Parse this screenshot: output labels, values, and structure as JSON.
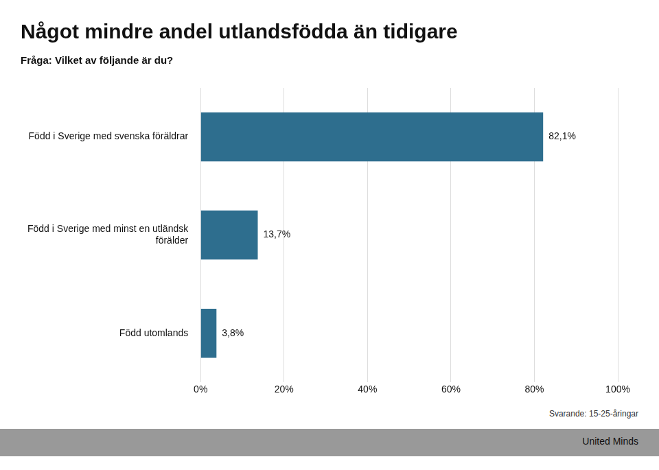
{
  "chart_data": {
    "type": "bar",
    "orientation": "horizontal",
    "title": "Något mindre andel utlandsfödda än tidigare",
    "subtitle": "Fråga: Vilket av följande är du?",
    "categories": [
      "Född i Sverige med svenska föräldrar",
      "Född i Sverige med minst en utländsk\nförälder",
      "Född utomlands"
    ],
    "values": [
      82.1,
      13.7,
      3.8
    ],
    "value_labels": [
      "82,1%",
      "13,7%",
      "3,8%"
    ],
    "data_labels": true,
    "color": "#2E6E8E",
    "xlim": [
      0,
      100
    ],
    "xticks": [
      {
        "value": 0,
        "label": "0%"
      },
      {
        "value": 20,
        "label": "20%"
      },
      {
        "value": 40,
        "label": "40%"
      },
      {
        "value": 60,
        "label": "60%"
      },
      {
        "value": 80,
        "label": "80%"
      },
      {
        "value": 100,
        "label": "100%"
      }
    ],
    "grid": true,
    "annotations": [
      "Svarande: 15-25-åringar",
      "United Minds"
    ]
  }
}
